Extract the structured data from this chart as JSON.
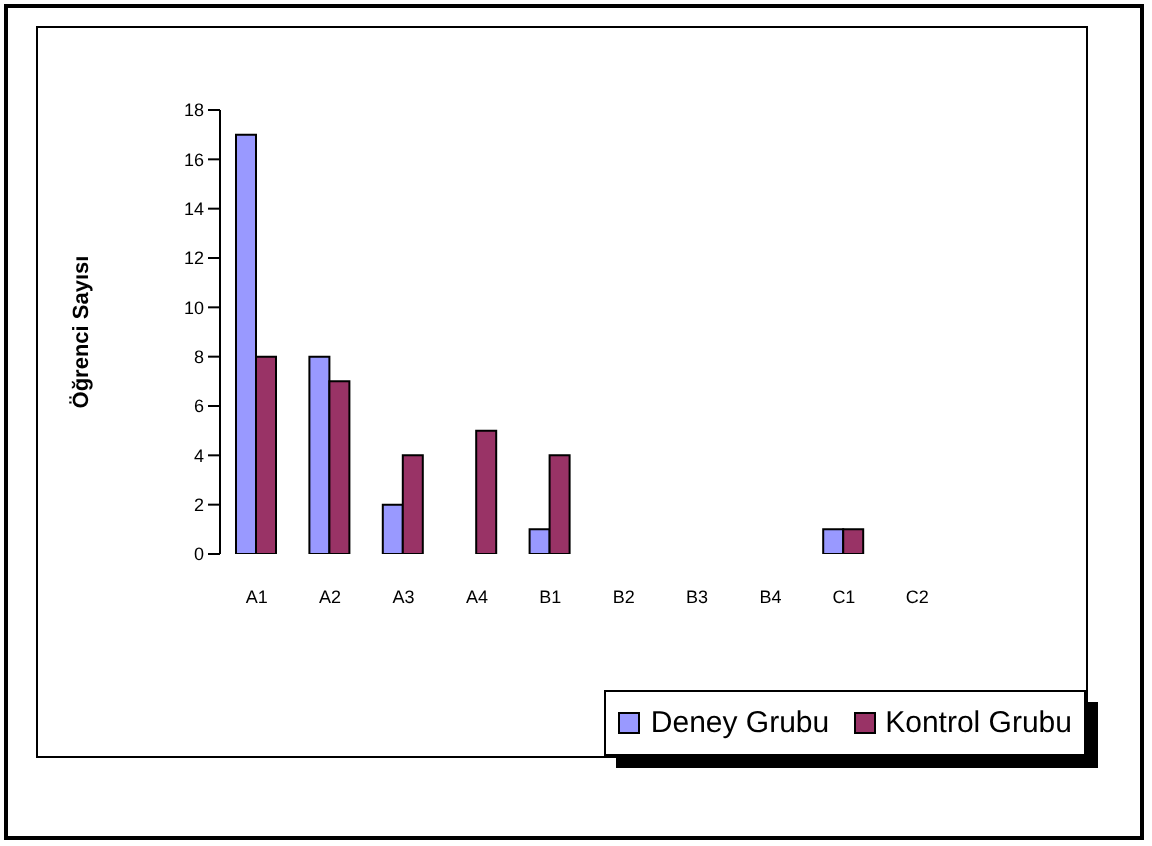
{
  "chart_data": {
    "type": "bar",
    "ylabel": "Öğrenci Sayısı",
    "categories": [
      "A1",
      "A2",
      "A3",
      "A4",
      "B1",
      "B2",
      "B3",
      "B4",
      "C1",
      "C2"
    ],
    "series": [
      {
        "name": "Deney Grubu",
        "color": "#9999ff",
        "values": [
          17,
          8,
          2,
          0,
          1,
          null,
          null,
          null,
          1,
          null
        ]
      },
      {
        "name": "Kontrol Grubu",
        "color": "#993366",
        "values": [
          8,
          7,
          4,
          5,
          4,
          null,
          null,
          null,
          1,
          null
        ]
      }
    ],
    "ylim": [
      0,
      18
    ],
    "yticks": [
      0,
      2,
      4,
      6,
      8,
      10,
      12,
      14,
      16,
      18
    ],
    "legend": "bottom right"
  }
}
